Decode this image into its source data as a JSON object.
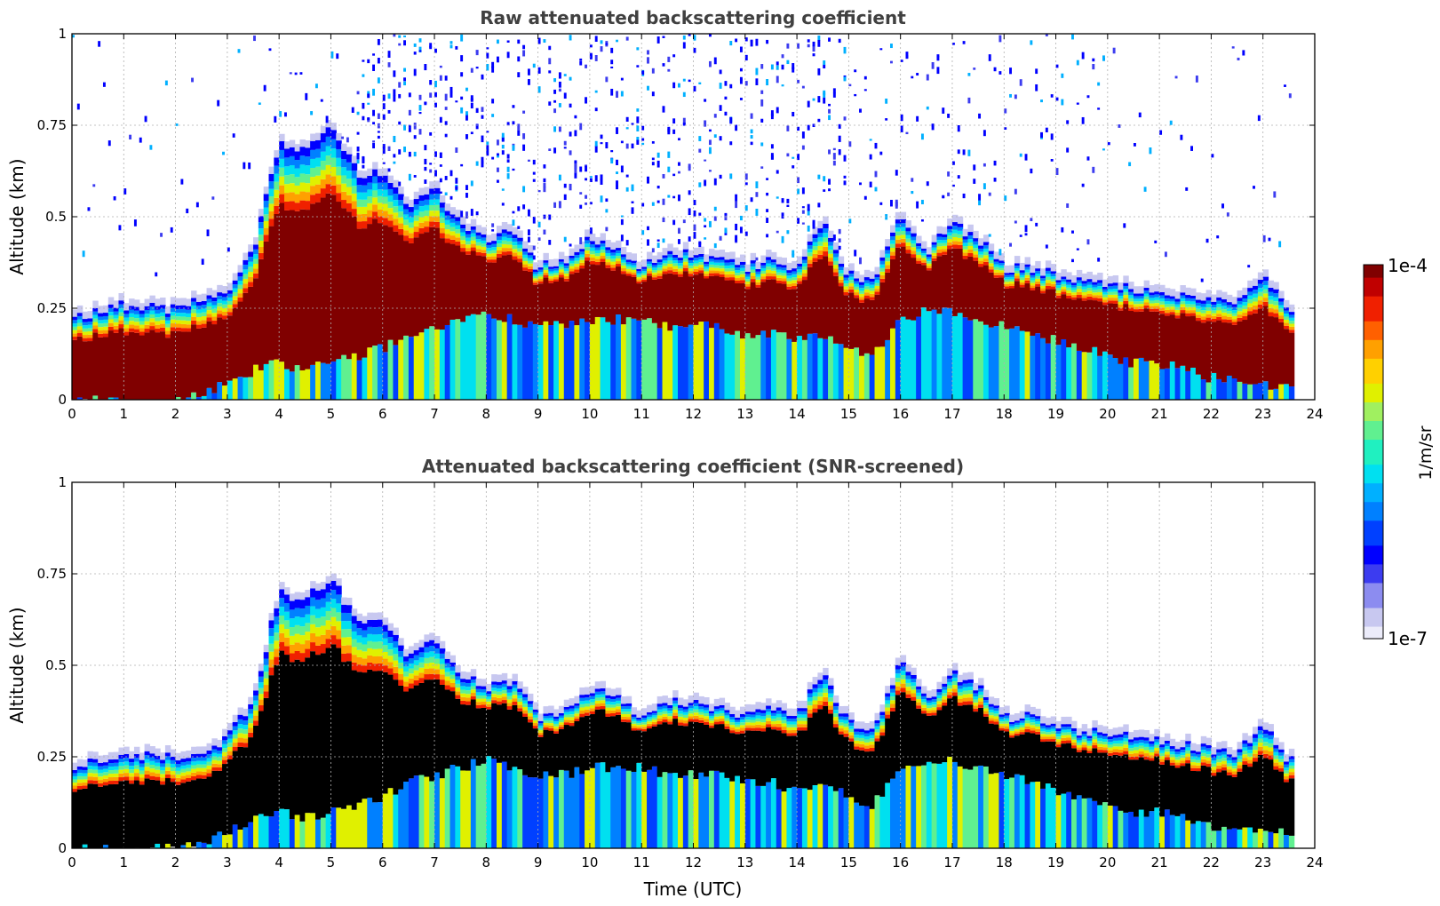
{
  "chart_data": [
    {
      "type": "heatmap",
      "title": "Raw attenuated backscattering coefficient",
      "xlabel": "",
      "ylabel": "Altitude (km)",
      "xlim": [
        0,
        24
      ],
      "ylim": [
        0,
        1
      ],
      "x_ticks": [
        0,
        1,
        2,
        3,
        4,
        5,
        6,
        7,
        8,
        9,
        10,
        11,
        12,
        13,
        14,
        15,
        16,
        17,
        18,
        19,
        20,
        21,
        22,
        23,
        24
      ],
      "y_ticks": [
        0,
        0.25,
        0.5,
        0.75,
        1
      ],
      "y_tick_labels": [
        "0",
        "0.25",
        "0.5",
        "0.75",
        "1"
      ],
      "grid": true,
      "screened": false,
      "time_utc": [
        0,
        0.5,
        1,
        1.5,
        2,
        2.5,
        3,
        3.5,
        4,
        4.5,
        5,
        5.5,
        6,
        6.5,
        7,
        7.5,
        8,
        8.5,
        9,
        9.5,
        10,
        10.5,
        11,
        11.5,
        12,
        12.5,
        13,
        13.5,
        14,
        14.5,
        15,
        15.5,
        16,
        16.5,
        17,
        17.5,
        18,
        18.5,
        19,
        19.5,
        20,
        20.5,
        21,
        21.5,
        22,
        22.5,
        23,
        23.5
      ],
      "layer_top_km": [
        0.22,
        0.24,
        0.26,
        0.25,
        0.25,
        0.27,
        0.3,
        0.4,
        0.7,
        0.68,
        0.74,
        0.62,
        0.62,
        0.52,
        0.58,
        0.48,
        0.44,
        0.46,
        0.36,
        0.38,
        0.44,
        0.42,
        0.36,
        0.4,
        0.4,
        0.38,
        0.36,
        0.38,
        0.36,
        0.48,
        0.34,
        0.32,
        0.52,
        0.4,
        0.48,
        0.44,
        0.36,
        0.36,
        0.34,
        0.32,
        0.32,
        0.3,
        0.29,
        0.28,
        0.27,
        0.26,
        0.34,
        0.24
      ],
      "layer_bottom_km": [
        0.0,
        0.0,
        0.0,
        0.0,
        0.0,
        0.02,
        0.04,
        0.08,
        0.1,
        0.08,
        0.1,
        0.12,
        0.14,
        0.18,
        0.2,
        0.22,
        0.24,
        0.22,
        0.2,
        0.2,
        0.22,
        0.22,
        0.22,
        0.2,
        0.2,
        0.2,
        0.18,
        0.18,
        0.16,
        0.18,
        0.14,
        0.12,
        0.22,
        0.24,
        0.24,
        0.22,
        0.2,
        0.18,
        0.16,
        0.14,
        0.12,
        0.1,
        0.1,
        0.08,
        0.06,
        0.06,
        0.04,
        0.04
      ],
      "data_end_utc": 23.6
    },
    {
      "type": "heatmap",
      "title": "Attenuated backscattering coefficient (SNR-screened)",
      "xlabel": "Time (UTC)",
      "ylabel": "Altitude (km)",
      "xlim": [
        0,
        24
      ],
      "ylim": [
        0,
        1
      ],
      "x_ticks": [
        0,
        1,
        2,
        3,
        4,
        5,
        6,
        7,
        8,
        9,
        10,
        11,
        12,
        13,
        14,
        15,
        16,
        17,
        18,
        19,
        20,
        21,
        22,
        23,
        24
      ],
      "y_ticks": [
        0,
        0.25,
        0.5,
        0.75,
        1
      ],
      "y_tick_labels": [
        "0",
        "0.25",
        "0.5",
        "0.75",
        "1"
      ],
      "grid": true,
      "screened": true,
      "time_utc": [
        0,
        0.5,
        1,
        1.5,
        2,
        2.5,
        3,
        3.5,
        4,
        4.5,
        5,
        5.5,
        6,
        6.5,
        7,
        7.5,
        8,
        8.5,
        9,
        9.5,
        10,
        10.5,
        11,
        11.5,
        12,
        12.5,
        13,
        13.5,
        14,
        14.5,
        15,
        15.5,
        16,
        16.5,
        17,
        17.5,
        18,
        18.5,
        19,
        19.5,
        20,
        20.5,
        21,
        21.5,
        22,
        22.5,
        23,
        23.5
      ],
      "layer_top_km": [
        0.22,
        0.24,
        0.26,
        0.25,
        0.25,
        0.27,
        0.3,
        0.4,
        0.7,
        0.68,
        0.74,
        0.62,
        0.62,
        0.52,
        0.58,
        0.48,
        0.44,
        0.46,
        0.36,
        0.38,
        0.44,
        0.42,
        0.36,
        0.4,
        0.4,
        0.38,
        0.36,
        0.38,
        0.36,
        0.48,
        0.34,
        0.32,
        0.52,
        0.4,
        0.48,
        0.44,
        0.36,
        0.36,
        0.34,
        0.32,
        0.32,
        0.3,
        0.29,
        0.28,
        0.27,
        0.26,
        0.34,
        0.24
      ],
      "layer_bottom_km": [
        0.0,
        0.0,
        0.0,
        0.0,
        0.0,
        0.02,
        0.04,
        0.08,
        0.1,
        0.08,
        0.1,
        0.12,
        0.14,
        0.18,
        0.2,
        0.22,
        0.24,
        0.22,
        0.2,
        0.2,
        0.22,
        0.22,
        0.22,
        0.2,
        0.2,
        0.2,
        0.18,
        0.18,
        0.16,
        0.18,
        0.14,
        0.12,
        0.22,
        0.24,
        0.24,
        0.22,
        0.2,
        0.18,
        0.16,
        0.14,
        0.12,
        0.1,
        0.1,
        0.08,
        0.06,
        0.06,
        0.04,
        0.04
      ],
      "data_end_utc": 23.6
    }
  ],
  "colorbar": {
    "max_label": "1e-4",
    "min_label": "1e-7",
    "unit": "1/m/sr",
    "colors": [
      "#ececfa",
      "#c8c8f0",
      "#8c8cf0",
      "#3c3cf0",
      "#0000ff",
      "#0040ff",
      "#0080ff",
      "#00b0ff",
      "#00e0f0",
      "#20f0c0",
      "#60f090",
      "#a0f060",
      "#e0f000",
      "#ffd000",
      "#ffa000",
      "#ff6000",
      "#f02000",
      "#c00000",
      "#800000"
    ],
    "scale": "log"
  }
}
